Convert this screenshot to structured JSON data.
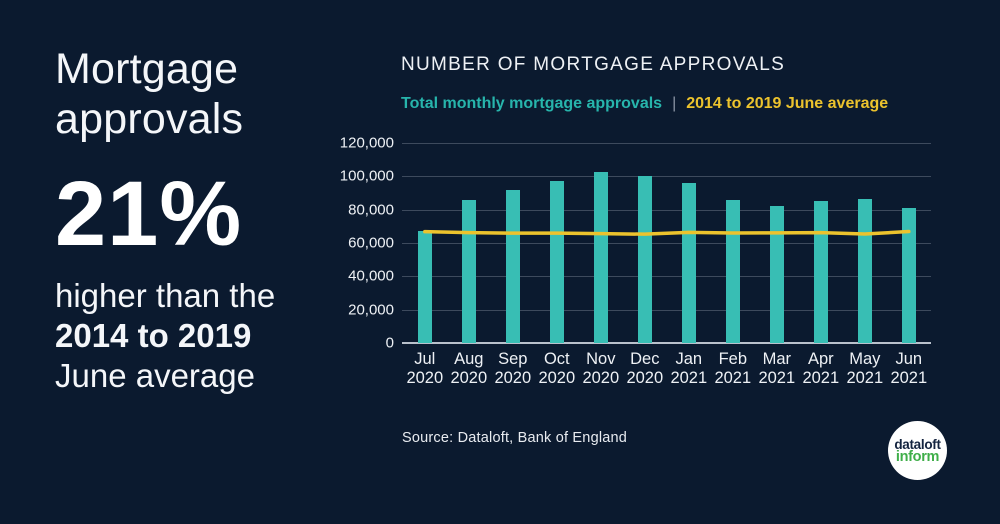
{
  "colors": {
    "background": "#0b1a2f",
    "bar_teal": "#38beb4",
    "line_yellow": "#ecc32d",
    "text_white": "#f2f4f7",
    "gridline": "#3d4a5d",
    "axis": "#b9c1cc",
    "logo_navy": "#13233f",
    "logo_green": "#3fae49"
  },
  "left_panel": {
    "headline": "Mortgage\napprovals",
    "stat": "21%",
    "sub_line1": "higher than the",
    "sub_line2": "2014 to 2019",
    "sub_line3": "June average"
  },
  "chart": {
    "title": "NUMBER OF MORTGAGE APPROVALS",
    "legend_series1": "Total monthly mortgage approvals",
    "legend_separator": "|",
    "legend_series2": "2014 to 2019 June average",
    "source": "Source: Dataloft, Bank of England"
  },
  "chart_data": {
    "type": "bar",
    "title": "NUMBER OF MORTGAGE APPROVALS",
    "categories": [
      "Jul 2020",
      "Aug 2020",
      "Sep 2020",
      "Oct 2020",
      "Nov 2020",
      "Dec 2020",
      "Jan 2021",
      "Feb 2021",
      "Mar 2021",
      "Apr 2021",
      "May 2021",
      "Jun 2021"
    ],
    "series": [
      {
        "name": "Total monthly mortgage approvals",
        "type": "bar",
        "color": "#38beb4",
        "values": [
          67000,
          86000,
          92000,
          97000,
          102500,
          100000,
          96000,
          86000,
          82000,
          85500,
          86500,
          81000
        ]
      },
      {
        "name": "2014 to 2019 June average",
        "type": "line",
        "color": "#ecc32d",
        "values": [
          66800,
          66200,
          65900,
          65900,
          65600,
          65300,
          66400,
          66000,
          66100,
          66200,
          65400,
          66900
        ]
      }
    ],
    "ylim": [
      0,
      120000
    ],
    "ytick_interval": 20000,
    "ytick_labels": [
      "120,000",
      "100,000",
      "80,000",
      "60,000",
      "40,000",
      "20,000",
      "0"
    ],
    "grid": true,
    "legend_position": "top-left"
  },
  "logo": {
    "line1": "dataloft",
    "line2": "inform"
  }
}
